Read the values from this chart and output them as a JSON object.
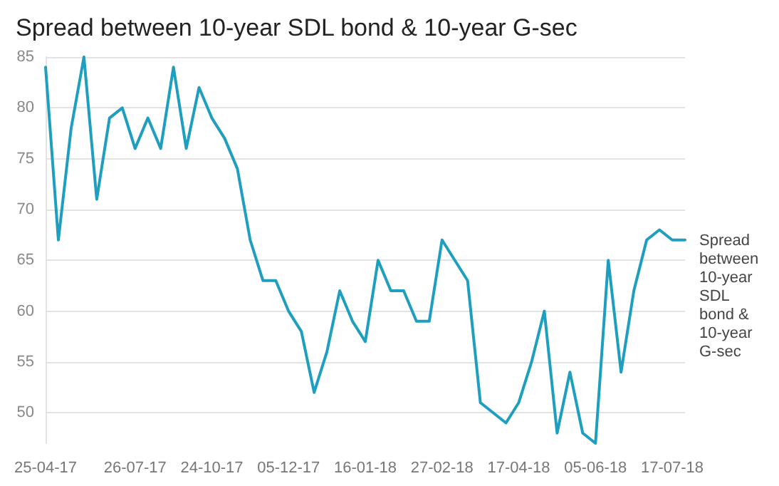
{
  "chart_data": {
    "type": "line",
    "title": "Spread between 10-year SDL bond & 10-year G-sec",
    "categories": [
      "25-04-17",
      null,
      null,
      null,
      null,
      null,
      null,
      "26-07-17",
      null,
      null,
      null,
      null,
      null,
      "24-10-17",
      null,
      null,
      null,
      null,
      null,
      "05-12-17",
      null,
      null,
      null,
      null,
      null,
      "16-01-18",
      null,
      null,
      null,
      null,
      null,
      "27-02-18",
      null,
      null,
      null,
      null,
      null,
      "17-04-18",
      null,
      null,
      null,
      null,
      null,
      "05-06-18",
      null,
      null,
      null,
      null,
      null,
      "17-07-18",
      null
    ],
    "series": [
      {
        "name": "Spread between 10-year SDL bond & 10-year G-sec",
        "color": "#1f9fbf",
        "values": [
          84,
          67,
          78,
          85,
          71,
          79,
          80,
          76,
          79,
          76,
          84,
          76,
          82,
          79,
          77,
          74,
          67,
          63,
          63,
          60,
          58,
          52,
          56,
          62,
          59,
          57,
          65,
          62,
          62,
          59,
          59,
          67,
          65,
          63,
          51,
          50,
          49,
          51,
          55,
          60,
          48,
          54,
          48,
          47,
          65,
          54,
          62,
          67,
          68,
          67,
          67
        ]
      }
    ],
    "ylim": [
      47,
      85
    ],
    "yticks": [
      50,
      55,
      60,
      65,
      70,
      75,
      80,
      85
    ],
    "grid": "y",
    "legend": false,
    "marker": "none",
    "line_style": "solid"
  }
}
